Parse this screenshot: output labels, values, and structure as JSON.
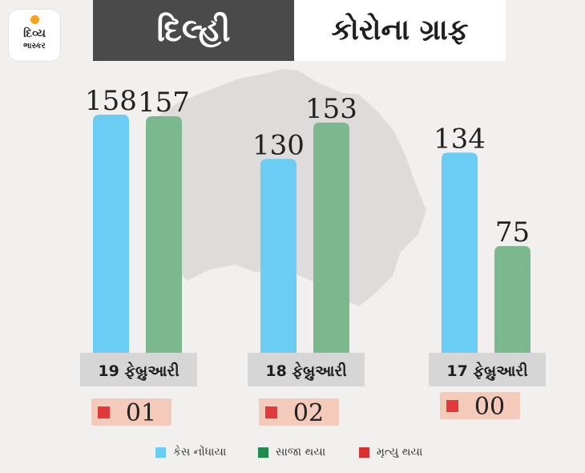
{
  "logo": {
    "line1": "દિવ્ય",
    "line2": "ભાસ્કર"
  },
  "header": {
    "left": "દિલ્હી",
    "right": "કોરોના ગ્રાફ"
  },
  "colors": {
    "cases": "#6bcdf3",
    "recovered": "#7bb88d",
    "deaths": "#e23a3a",
    "date_box": "#d6d6d6",
    "death_box": "#f4cabb",
    "map": "#dedcda"
  },
  "chart_data": {
    "type": "bar",
    "categories": [
      "19 ફેબ્રુઆરી",
      "18 ફેબ્રુઆરી",
      "17 ફેબ્રુઆરી"
    ],
    "series": [
      {
        "name": "કેસ નોંધાયા",
        "values": [
          158,
          130,
          134
        ]
      },
      {
        "name": "સાજા થયા",
        "values": [
          157,
          153,
          75
        ]
      },
      {
        "name": "મૃત્યુ થયા",
        "values": [
          "01",
          "02",
          "00"
        ]
      }
    ],
    "ylim": [
      0,
      158
    ],
    "legend": "bottom"
  }
}
